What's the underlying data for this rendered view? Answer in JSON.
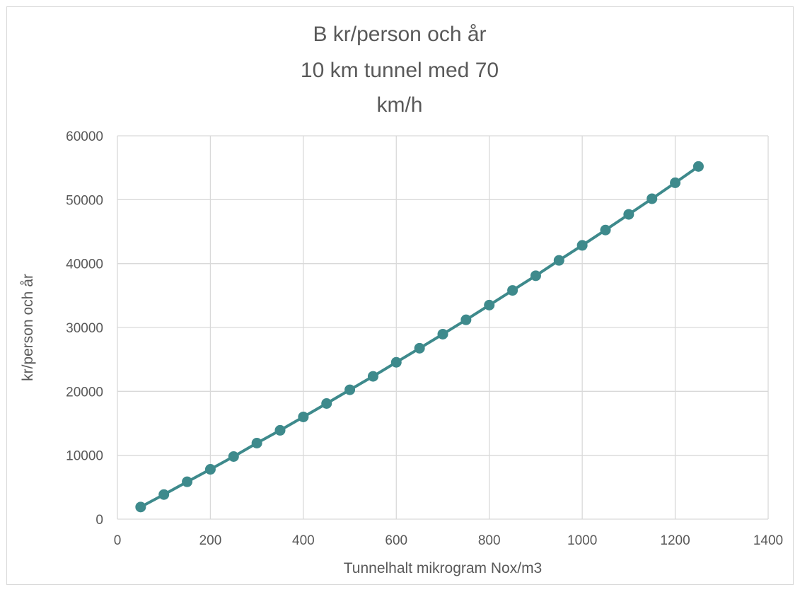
{
  "chart_data": {
    "type": "line",
    "title": [
      "B kr/person och år",
      "10 km tunnel med 70",
      "km/h"
    ],
    "xlabel": "Tunnelhalt mikrogram Nox/m3",
    "ylabel": "kr/person och år",
    "xlim": [
      0,
      1400
    ],
    "ylim": [
      0,
      60000
    ],
    "xticks": [
      "0",
      "200",
      "400",
      "600",
      "800",
      "1000",
      "1200",
      "1400"
    ],
    "yticks": [
      "0",
      "10000",
      "20000",
      "30000",
      "40000",
      "50000",
      "60000"
    ],
    "grid": true,
    "legend": "none",
    "series": [
      {
        "color": "#3e8a8c",
        "x": [
          50,
          100,
          150,
          200,
          250,
          300,
          350,
          400,
          450,
          500,
          550,
          600,
          650,
          700,
          750,
          800,
          850,
          900,
          950,
          1000,
          1050,
          1100,
          1150,
          1200,
          1250
        ],
        "y": [
          1900,
          3850,
          5850,
          7800,
          9800,
          11900,
          13900,
          16000,
          18100,
          20250,
          22350,
          24550,
          26750,
          28950,
          31200,
          33500,
          35800,
          38100,
          40500,
          42850,
          45250,
          47700,
          50150,
          52650,
          55200
        ]
      }
    ]
  }
}
